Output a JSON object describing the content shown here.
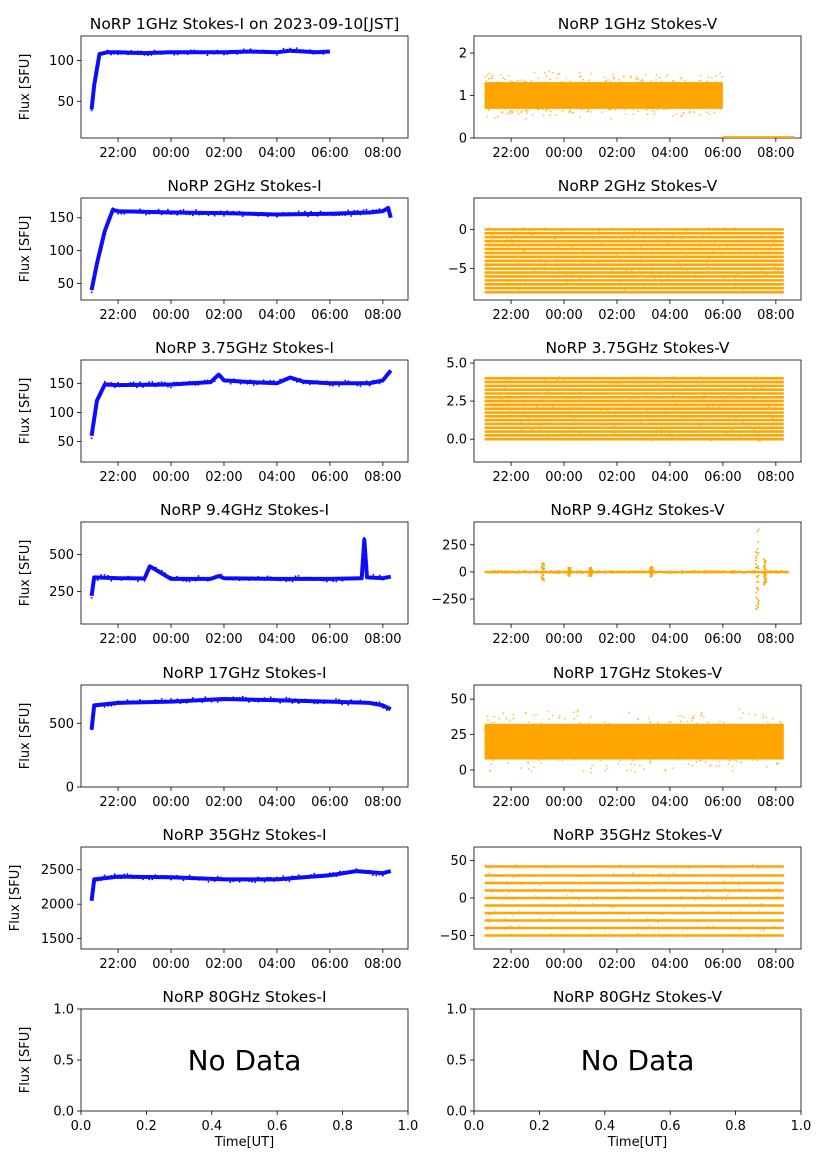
{
  "figure": {
    "x_label": "Time[UT]",
    "y_label": "Flux [SFU]",
    "time_ticks": [
      "22:00",
      "00:00",
      "02:00",
      "04:00",
      "06:00",
      "08:00"
    ],
    "no_data_text": "No Data",
    "colors": {
      "stokes_i": "#0000ff",
      "stokes_v": "#ffa500"
    }
  },
  "chart_data": [
    {
      "id": "p1i",
      "type": "scatter",
      "title": "NoRP 1GHz Stokes-I on 2023-09-10[JST]",
      "ylabel": "Flux [SFU]",
      "ylim": [
        5,
        130
      ],
      "yticks": [
        {
          "v": 50,
          "label": "50"
        },
        {
          "v": 100,
          "label": "100"
        }
      ],
      "xticks": [
        "22:00",
        "00:00",
        "02:00",
        "04:00",
        "06:00",
        "08:00"
      ],
      "series": [
        {
          "name": "Stokes-I",
          "color": "#0000ff",
          "x_hours": [
            21.0,
            21.1,
            21.3,
            21.6,
            22.0,
            23.0,
            0.0,
            1.0,
            2.0,
            3.0,
            4.0,
            4.5,
            5.0,
            5.5,
            6.0
          ],
          "y": [
            40,
            70,
            108,
            110,
            110,
            109,
            110,
            110,
            110,
            111,
            110,
            112,
            111,
            110,
            111
          ]
        }
      ]
    },
    {
      "id": "p1v",
      "type": "scatter",
      "title": "NoRP 1GHz Stokes-V",
      "ylabel": "",
      "ylim": [
        0,
        2.4
      ],
      "yticks": [
        {
          "v": 0,
          "label": "0"
        },
        {
          "v": 1,
          "label": "1"
        },
        {
          "v": 2,
          "label": "2"
        }
      ],
      "xticks": [
        "22:00",
        "00:00",
        "02:00",
        "04:00",
        "06:00",
        "08:00"
      ],
      "series": [
        {
          "name": "Stokes-V",
          "color": "#ffa500",
          "x_range": [
            21.0,
            6.0
          ],
          "y_center": 1.0,
          "y_spread": 0.45,
          "extra": [
            {
              "x_range": [
                6.0,
                8.7
              ],
              "y_center": 0.02,
              "y_spread": 0.01
            }
          ]
        }
      ]
    },
    {
      "id": "p2i",
      "type": "scatter",
      "title": "NoRP 2GHz Stokes-I",
      "ylabel": "Flux [SFU]",
      "ylim": [
        25,
        180
      ],
      "yticks": [
        {
          "v": 50,
          "label": "50"
        },
        {
          "v": 100,
          "label": "100"
        },
        {
          "v": 150,
          "label": "150"
        }
      ],
      "xticks": [
        "22:00",
        "00:00",
        "02:00",
        "04:00",
        "06:00",
        "08:00"
      ],
      "series": [
        {
          "name": "Stokes-I",
          "color": "#0000ff",
          "x_hours": [
            21.0,
            21.2,
            21.5,
            21.8,
            22.0,
            0.0,
            2.0,
            4.0,
            6.0,
            7.5,
            8.0,
            8.2,
            8.3
          ],
          "y": [
            40,
            80,
            130,
            162,
            160,
            158,
            157,
            155,
            156,
            158,
            160,
            165,
            150
          ]
        }
      ]
    },
    {
      "id": "p2v",
      "type": "scatter",
      "title": "NoRP 2GHz Stokes-V",
      "ylabel": "",
      "ylim": [
        -9,
        4
      ],
      "yticks": [
        {
          "v": -5,
          "label": "−5"
        },
        {
          "v": 0,
          "label": "0"
        }
      ],
      "xticks": [
        "22:00",
        "00:00",
        "02:00",
        "04:00",
        "06:00",
        "08:00"
      ],
      "series": [
        {
          "name": "Stokes-V",
          "color": "#ffa500",
          "x_range": [
            21.0,
            8.3
          ],
          "levels_min": -8,
          "levels_max": 0
        }
      ]
    },
    {
      "id": "p3i",
      "type": "scatter",
      "title": "NoRP 3.75GHz Stokes-I",
      "ylabel": "Flux [SFU]",
      "ylim": [
        15,
        190
      ],
      "yticks": [
        {
          "v": 50,
          "label": "50"
        },
        {
          "v": 100,
          "label": "100"
        },
        {
          "v": 150,
          "label": "150"
        }
      ],
      "xticks": [
        "22:00",
        "00:00",
        "02:00",
        "04:00",
        "06:00",
        "08:00"
      ],
      "series": [
        {
          "name": "Stokes-I",
          "color": "#0000ff",
          "x_hours": [
            21.0,
            21.2,
            21.5,
            22.0,
            0.0,
            1.5,
            1.8,
            2.0,
            3.0,
            4.0,
            4.5,
            5.0,
            6.0,
            7.5,
            8.0,
            8.3
          ],
          "y": [
            60,
            120,
            148,
            147,
            148,
            152,
            165,
            155,
            152,
            150,
            160,
            153,
            150,
            150,
            155,
            172
          ]
        }
      ]
    },
    {
      "id": "p3v",
      "type": "scatter",
      "title": "NoRP 3.75GHz Stokes-V",
      "ylabel": "",
      "ylim": [
        -1.5,
        5.2
      ],
      "yticks": [
        {
          "v": 0,
          "label": "0.0"
        },
        {
          "v": 2.5,
          "label": "2.5"
        },
        {
          "v": 5,
          "label": "5.0"
        }
      ],
      "xticks": [
        "22:00",
        "00:00",
        "02:00",
        "04:00",
        "06:00",
        "08:00"
      ],
      "series": [
        {
          "name": "Stokes-V",
          "color": "#ffa500",
          "x_range": [
            21.0,
            8.3
          ],
          "levels_min": 0,
          "levels_max": 4
        }
      ]
    },
    {
      "id": "p4i",
      "type": "scatter",
      "title": "NoRP 9.4GHz Stokes-I",
      "ylabel": "Flux [SFU]",
      "ylim": [
        30,
        720
      ],
      "yticks": [
        {
          "v": 250,
          "label": "250"
        },
        {
          "v": 500,
          "label": "500"
        }
      ],
      "xticks": [
        "22:00",
        "00:00",
        "02:00",
        "04:00",
        "06:00",
        "08:00"
      ],
      "series": [
        {
          "name": "Stokes-I",
          "color": "#0000ff",
          "x_hours": [
            21.0,
            21.1,
            22.0,
            23.0,
            23.2,
            0.0,
            1.5,
            1.8,
            2.0,
            4.0,
            6.0,
            7.2,
            7.3,
            7.4,
            8.0,
            8.3
          ],
          "y": [
            220,
            345,
            340,
            338,
            420,
            335,
            335,
            355,
            340,
            335,
            335,
            340,
            600,
            345,
            340,
            350
          ]
        }
      ]
    },
    {
      "id": "p4v",
      "type": "scatter",
      "title": "NoRP 9.4GHz Stokes-V",
      "ylabel": "",
      "ylim": [
        -480,
        460
      ],
      "yticks": [
        {
          "v": -250,
          "label": "−250"
        },
        {
          "v": 0,
          "label": "0"
        },
        {
          "v": 250,
          "label": "250"
        }
      ],
      "xticks": [
        "22:00",
        "00:00",
        "02:00",
        "04:00",
        "06:00",
        "08:00"
      ],
      "series": [
        {
          "name": "Stokes-V",
          "color": "#ffa500",
          "x_range": [
            21.0,
            8.5
          ],
          "y_center": 0,
          "y_spread": 10,
          "spikes": [
            {
              "x": 23.2,
              "a": 80
            },
            {
              "x": 0.2,
              "a": 40
            },
            {
              "x": 1.0,
              "a": 40
            },
            {
              "x": 3.3,
              "a": 50
            },
            {
              "x": 7.3,
              "a": 400
            },
            {
              "x": 7.6,
              "a": 120
            }
          ]
        }
      ]
    },
    {
      "id": "p5i",
      "type": "scatter",
      "title": "NoRP 17GHz Stokes-I",
      "ylabel": "Flux [SFU]",
      "ylim": [
        0,
        800
      ],
      "yticks": [
        {
          "v": 0,
          "label": "0"
        },
        {
          "v": 500,
          "label": "500"
        }
      ],
      "xticks": [
        "22:00",
        "00:00",
        "02:00",
        "04:00",
        "06:00",
        "08:00"
      ],
      "series": [
        {
          "name": "Stokes-I",
          "color": "#0000ff",
          "x_hours": [
            21.0,
            21.1,
            22.0,
            0.0,
            2.0,
            4.0,
            6.0,
            7.5,
            8.0,
            8.3
          ],
          "y": [
            450,
            640,
            660,
            670,
            690,
            680,
            670,
            660,
            640,
            610
          ]
        }
      ]
    },
    {
      "id": "p5v",
      "type": "scatter",
      "title": "NoRP 17GHz Stokes-V",
      "ylabel": "",
      "ylim": [
        -12,
        60
      ],
      "yticks": [
        {
          "v": 0,
          "label": "0"
        },
        {
          "v": 25,
          "label": "25"
        },
        {
          "v": 50,
          "label": "50"
        }
      ],
      "xticks": [
        "22:00",
        "00:00",
        "02:00",
        "04:00",
        "06:00",
        "08:00"
      ],
      "series": [
        {
          "name": "Stokes-V",
          "color": "#ffa500",
          "x_range": [
            21.0,
            8.3
          ],
          "y_center": 20,
          "y_spread": 18
        }
      ]
    },
    {
      "id": "p6i",
      "type": "scatter",
      "title": "NoRP 35GHz Stokes-I",
      "ylabel": "Flux [SFU]",
      "ylim": [
        1350,
        2830
      ],
      "yticks": [
        {
          "v": 1500,
          "label": "1500"
        },
        {
          "v": 2000,
          "label": "2000"
        },
        {
          "v": 2500,
          "label": "2500"
        }
      ],
      "xticks": [
        "22:00",
        "00:00",
        "02:00",
        "04:00",
        "06:00",
        "08:00"
      ],
      "series": [
        {
          "name": "Stokes-I",
          "color": "#0000ff",
          "x_hours": [
            21.0,
            21.1,
            22.0,
            0.0,
            2.0,
            4.0,
            6.0,
            7.0,
            8.0,
            8.3
          ],
          "y": [
            2050,
            2360,
            2400,
            2390,
            2360,
            2360,
            2420,
            2480,
            2450,
            2480
          ]
        }
      ]
    },
    {
      "id": "p6v",
      "type": "scatter",
      "title": "NoRP 35GHz Stokes-V",
      "ylabel": "",
      "ylim": [
        -68,
        68
      ],
      "yticks": [
        {
          "v": -50,
          "label": "−50"
        },
        {
          "v": 0,
          "label": "0"
        },
        {
          "v": 50,
          "label": "50"
        }
      ],
      "xticks": [
        "22:00",
        "00:00",
        "02:00",
        "04:00",
        "06:00",
        "08:00"
      ],
      "series": [
        {
          "name": "Stokes-V",
          "color": "#ffa500",
          "x_range": [
            21.0,
            8.3
          ],
          "levels_values": [
            -50,
            -40,
            -30,
            -20,
            -10,
            0,
            10,
            20,
            30,
            42
          ]
        }
      ]
    },
    {
      "id": "p7i",
      "type": "empty",
      "title": "NoRP 80GHz Stokes-I",
      "ylabel": "Flux [SFU]",
      "xlabel": "Time[UT]",
      "ylim": [
        0,
        1
      ],
      "xlim": [
        0,
        1
      ],
      "yticks": [
        {
          "v": 0,
          "label": "0.0"
        },
        {
          "v": 0.5,
          "label": "0.5"
        },
        {
          "v": 1,
          "label": "1.0"
        }
      ],
      "xticks_num": [
        "0.0",
        "0.2",
        "0.4",
        "0.6",
        "0.8",
        "1.0"
      ]
    },
    {
      "id": "p7v",
      "type": "empty",
      "title": "NoRP 80GHz Stokes-V",
      "ylabel": "",
      "xlabel": "Time[UT]",
      "ylim": [
        0,
        1
      ],
      "xlim": [
        0,
        1
      ],
      "yticks": [
        {
          "v": 0,
          "label": "0.0"
        },
        {
          "v": 0.5,
          "label": "0.5"
        },
        {
          "v": 1,
          "label": "1.0"
        }
      ],
      "xticks_num": [
        "0.0",
        "0.2",
        "0.4",
        "0.6",
        "0.8",
        "1.0"
      ]
    }
  ]
}
